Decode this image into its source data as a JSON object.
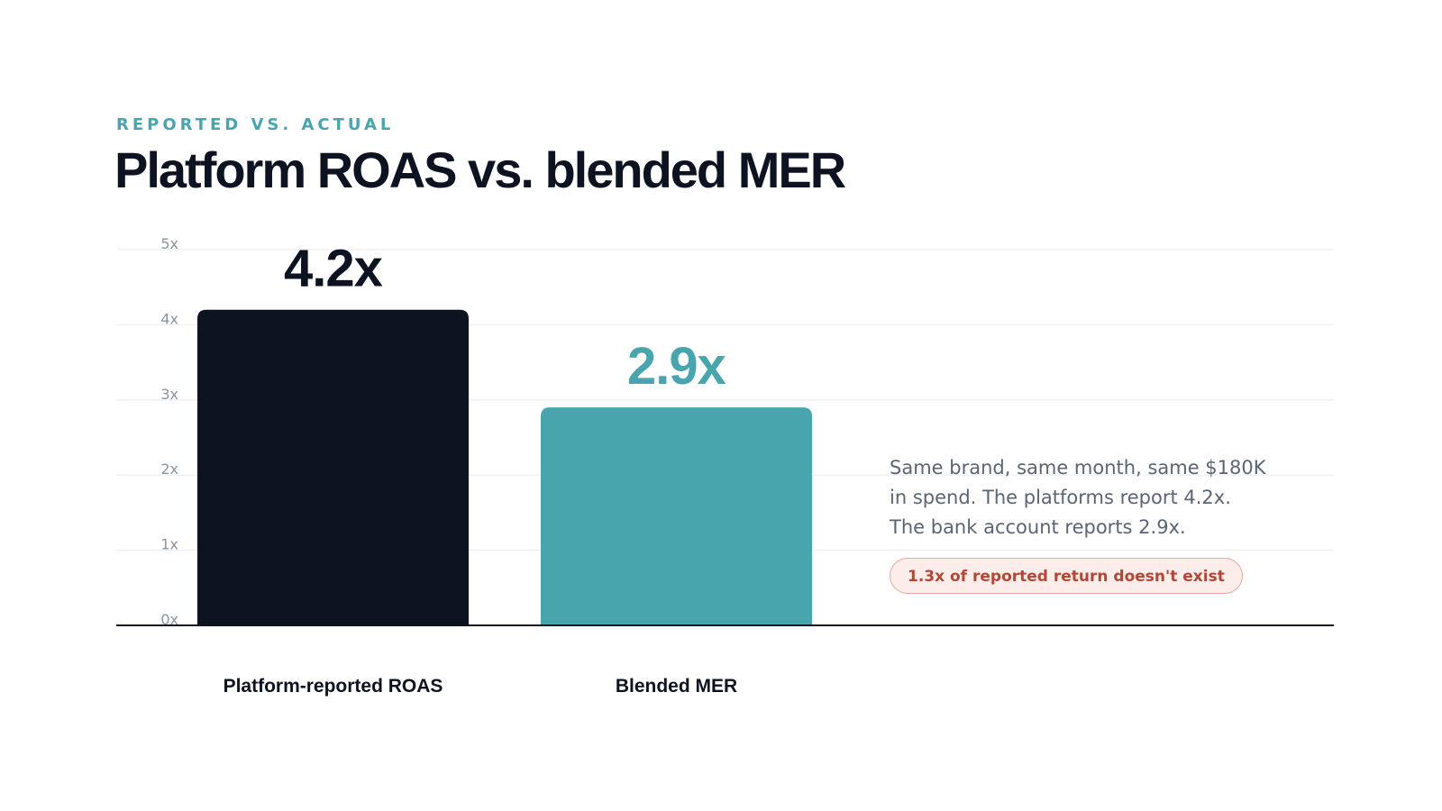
{
  "header": {
    "eyebrow": "REPORTED VS. ACTUAL",
    "title": "Platform ROAS vs. blended MER"
  },
  "annotation": {
    "note": "Same brand, same month, same $180K in spend. The platforms report 4.2x. The bank account reports 2.9x.",
    "badge": "1.3x of reported return doesn't exist"
  },
  "colors": {
    "primary_bar": "#0e1322",
    "accent_bar": "#49a5ad",
    "badge_text": "#b44636",
    "eyebrow": "#49a5ad"
  },
  "chart_data": {
    "type": "bar",
    "title": "Platform ROAS vs. blended MER",
    "categories": [
      "Platform-reported ROAS",
      "Blended MER"
    ],
    "values": [
      4.2,
      2.9
    ],
    "data_labels": [
      "4.2x",
      "2.9x"
    ],
    "bar_colors": [
      "#0e1322",
      "#49a5ad"
    ],
    "ylim": [
      0,
      5
    ],
    "yticks": [
      0,
      1,
      2,
      3,
      4,
      5
    ],
    "ytick_labels": [
      "0x",
      "1x",
      "2x",
      "3x",
      "4x",
      "5x"
    ],
    "xlabel": "",
    "ylabel": "",
    "grid": true
  }
}
